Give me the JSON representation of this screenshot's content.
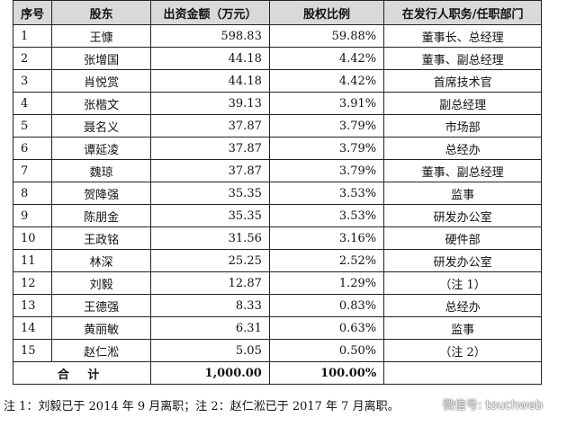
{
  "table": {
    "headers": [
      "序号",
      "股东",
      "出资金额（万元）",
      "股权比例",
      "在发行人职务/任职部门"
    ],
    "rows": [
      {
        "no": "1",
        "name": "王慷",
        "amount": "598.83",
        "ratio": "59.88%",
        "role": "董事长、总经理"
      },
      {
        "no": "2",
        "name": "张增国",
        "amount": "44.18",
        "ratio": "4.42%",
        "role": "董事、副总经理"
      },
      {
        "no": "3",
        "name": "肖悦赏",
        "amount": "44.18",
        "ratio": "4.42%",
        "role": "首席技术官"
      },
      {
        "no": "4",
        "name": "张楷文",
        "amount": "39.13",
        "ratio": "3.91%",
        "role": "副总经理"
      },
      {
        "no": "5",
        "name": "聂名义",
        "amount": "37.87",
        "ratio": "3.79%",
        "role": "市场部"
      },
      {
        "no": "6",
        "name": "谭延凌",
        "amount": "37.87",
        "ratio": "3.79%",
        "role": "总经办"
      },
      {
        "no": "7",
        "name": "魏琼",
        "amount": "37.87",
        "ratio": "3.79%",
        "role": "董事、副总经理"
      },
      {
        "no": "8",
        "name": "贺降强",
        "amount": "35.35",
        "ratio": "3.53%",
        "role": "监事"
      },
      {
        "no": "9",
        "name": "陈朋金",
        "amount": "35.35",
        "ratio": "3.53%",
        "role": "研发办公室"
      },
      {
        "no": "10",
        "name": "王政铭",
        "amount": "31.56",
        "ratio": "3.16%",
        "role": "硬件部"
      },
      {
        "no": "11",
        "name": "林深",
        "amount": "25.25",
        "ratio": "2.52%",
        "role": "研发办公室"
      },
      {
        "no": "12",
        "name": "刘毅",
        "amount": "12.87",
        "ratio": "1.29%",
        "role": "（注 1）"
      },
      {
        "no": "13",
        "name": "王德强",
        "amount": "8.33",
        "ratio": "0.83%",
        "role": "总经办"
      },
      {
        "no": "14",
        "name": "黄丽敏",
        "amount": "6.31",
        "ratio": "0.63%",
        "role": "监事"
      },
      {
        "no": "15",
        "name": "赵仁淞",
        "amount": "5.05",
        "ratio": "0.50%",
        "role": "（注 2）"
      }
    ],
    "total": {
      "label": "合 计",
      "amount": "1,000.00",
      "ratio": "100.00%"
    }
  },
  "note": "注 1：刘毅已于 2014 年 9 月离职；注 2：赵仁淞已于 2017 年 7 月离职。",
  "watermark": {
    "text": "微信号: touchweb",
    "icon": "wechat-icon"
  }
}
